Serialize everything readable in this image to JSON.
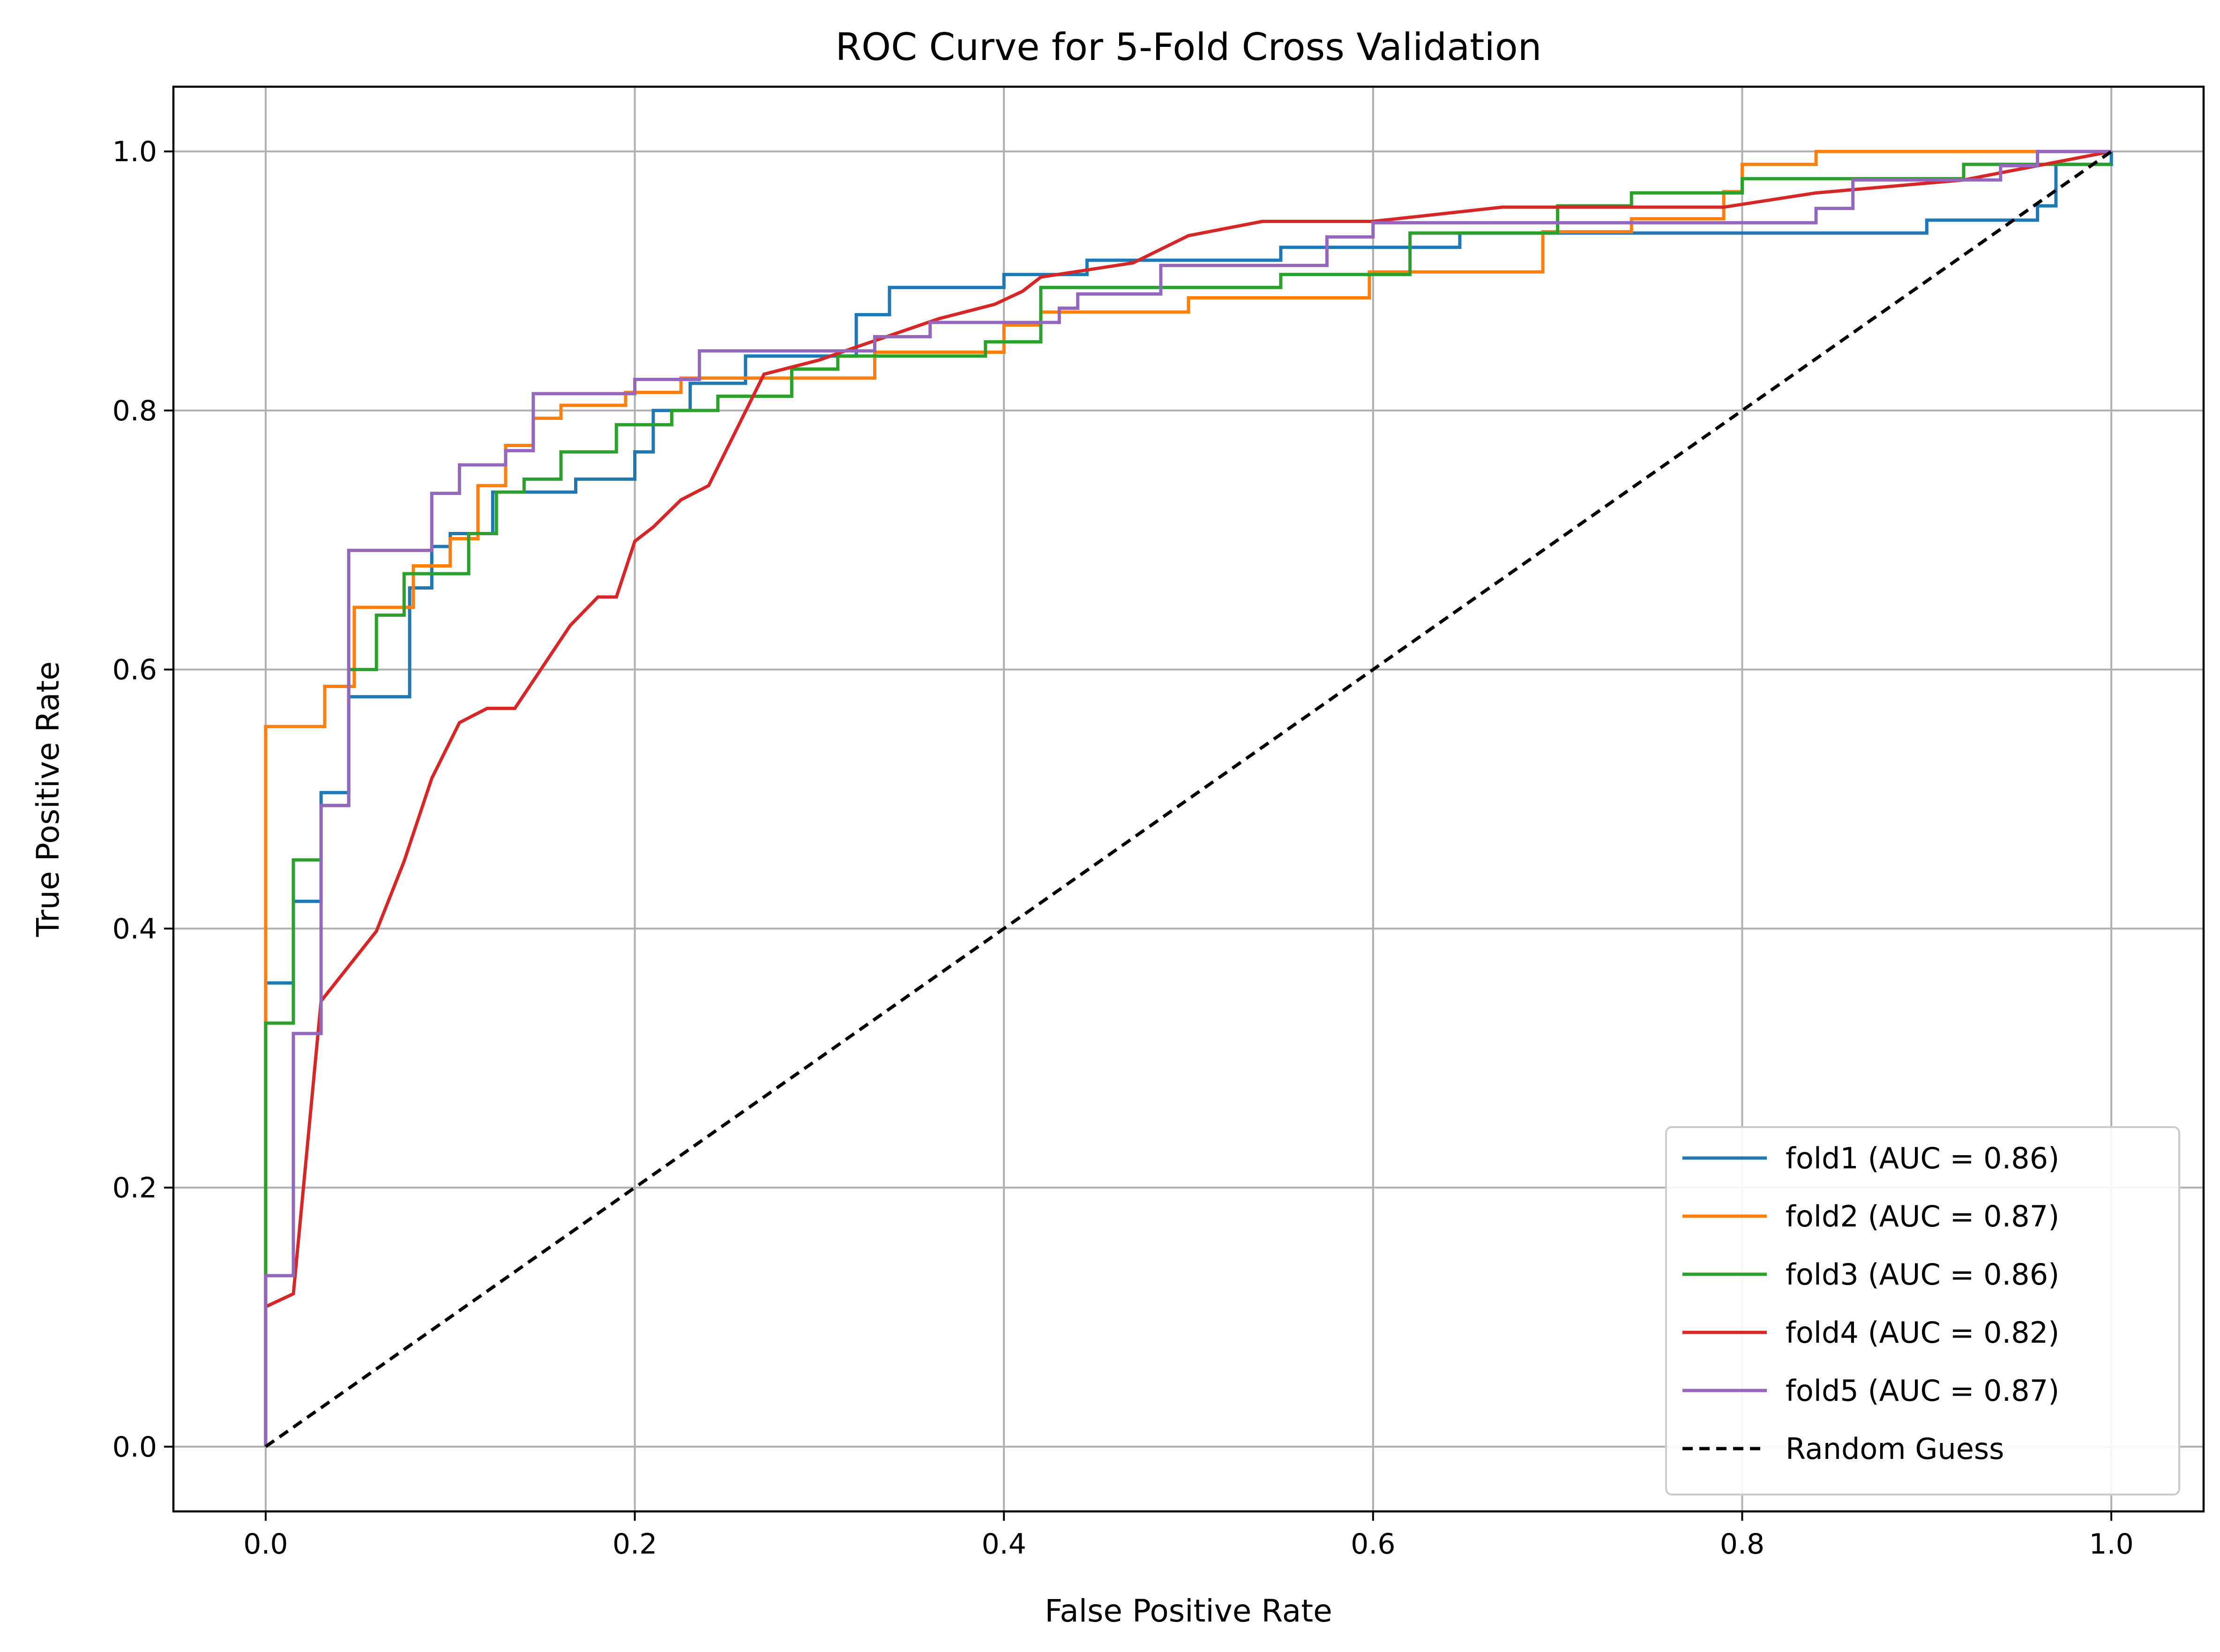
{
  "chart_data": {
    "type": "line",
    "title": "ROC Curve for 5-Fold Cross Validation",
    "xlabel": "False Positive Rate",
    "ylabel": "True Positive Rate",
    "xlim": [
      -0.05,
      1.05
    ],
    "ylim": [
      -0.05,
      1.05
    ],
    "xticks": [
      0.0,
      0.2,
      0.4,
      0.6,
      0.8,
      1.0
    ],
    "yticks": [
      0.0,
      0.2,
      0.4,
      0.6,
      0.8,
      1.0
    ],
    "xtick_labels": [
      "0.0",
      "0.2",
      "0.4",
      "0.6",
      "0.8",
      "1.0"
    ],
    "ytick_labels": [
      "0.0",
      "0.2",
      "0.4",
      "0.6",
      "0.8",
      "1.0"
    ],
    "grid": true,
    "legend_position": "bottom-right",
    "series": [
      {
        "name": "fold1 (AUC = 0.86)",
        "color": "#1f77b4",
        "step": true,
        "x": [
          0.0,
          0.0,
          0.015,
          0.015,
          0.03,
          0.03,
          0.045,
          0.045,
          0.078,
          0.078,
          0.09,
          0.09,
          0.1,
          0.1,
          0.123,
          0.123,
          0.168,
          0.168,
          0.2,
          0.2,
          0.21,
          0.21,
          0.23,
          0.23,
          0.26,
          0.26,
          0.32,
          0.32,
          0.338,
          0.338,
          0.4,
          0.4,
          0.445,
          0.445,
          0.55,
          0.55,
          0.647,
          0.647,
          0.9,
          0.9,
          0.96,
          0.96,
          0.97,
          0.97,
          1.0,
          1.0
        ],
        "y": [
          0.0,
          0.358,
          0.358,
          0.421,
          0.421,
          0.505,
          0.505,
          0.579,
          0.579,
          0.663,
          0.663,
          0.695,
          0.695,
          0.705,
          0.705,
          0.737,
          0.737,
          0.747,
          0.747,
          0.768,
          0.768,
          0.8,
          0.8,
          0.821,
          0.821,
          0.842,
          0.842,
          0.874,
          0.874,
          0.895,
          0.895,
          0.905,
          0.905,
          0.916,
          0.916,
          0.926,
          0.926,
          0.937,
          0.937,
          0.947,
          0.947,
          0.958,
          0.958,
          0.99,
          0.99,
          1.0
        ]
      },
      {
        "name": "fold2 (AUC = 0.87)",
        "color": "#ff7f0e",
        "step": true,
        "x": [
          0.0,
          0.0,
          0.032,
          0.032,
          0.048,
          0.048,
          0.08,
          0.08,
          0.1,
          0.1,
          0.115,
          0.115,
          0.13,
          0.13,
          0.145,
          0.145,
          0.16,
          0.16,
          0.195,
          0.195,
          0.225,
          0.225,
          0.33,
          0.33,
          0.4,
          0.4,
          0.42,
          0.42,
          0.5,
          0.5,
          0.598,
          0.598,
          0.692,
          0.692,
          0.74,
          0.74,
          0.79,
          0.79,
          0.8,
          0.8,
          0.84,
          0.84,
          1.0
        ],
        "y": [
          0.0,
          0.556,
          0.556,
          0.587,
          0.587,
          0.648,
          0.648,
          0.68,
          0.68,
          0.701,
          0.701,
          0.742,
          0.742,
          0.773,
          0.773,
          0.794,
          0.794,
          0.804,
          0.804,
          0.814,
          0.814,
          0.825,
          0.825,
          0.845,
          0.845,
          0.866,
          0.866,
          0.876,
          0.876,
          0.887,
          0.887,
          0.907,
          0.907,
          0.938,
          0.938,
          0.948,
          0.948,
          0.969,
          0.969,
          0.99,
          0.99,
          1.0,
          1.0
        ]
      },
      {
        "name": "fold3 (AUC = 0.86)",
        "color": "#2ca02c",
        "step": true,
        "x": [
          0.0,
          0.0,
          0.0,
          0.0,
          0.015,
          0.015,
          0.03,
          0.03,
          0.045,
          0.045,
          0.06,
          0.06,
          0.075,
          0.075,
          0.09,
          0.09,
          0.11,
          0.11,
          0.125,
          0.125,
          0.14,
          0.14,
          0.16,
          0.16,
          0.19,
          0.19,
          0.22,
          0.22,
          0.245,
          0.245,
          0.285,
          0.285,
          0.31,
          0.31,
          0.37,
          0.37,
          0.39,
          0.39,
          0.42,
          0.42,
          0.55,
          0.55,
          0.62,
          0.62,
          0.7,
          0.7,
          0.74,
          0.74,
          0.8,
          0.8,
          0.92,
          0.92,
          1.0
        ],
        "y": [
          0.0,
          0.133,
          0.133,
          0.327,
          0.327,
          0.453,
          0.453,
          0.495,
          0.495,
          0.6,
          0.6,
          0.642,
          0.642,
          0.674,
          0.674,
          0.674,
          0.674,
          0.705,
          0.705,
          0.737,
          0.737,
          0.747,
          0.747,
          0.768,
          0.768,
          0.789,
          0.789,
          0.8,
          0.8,
          0.811,
          0.811,
          0.832,
          0.832,
          0.842,
          0.842,
          0.842,
          0.842,
          0.853,
          0.853,
          0.895,
          0.895,
          0.905,
          0.905,
          0.937,
          0.937,
          0.958,
          0.958,
          0.968,
          0.968,
          0.979,
          0.979,
          0.99,
          0.99
        ]
      },
      {
        "name": "fold4 (AUC = 0.82)",
        "color": "#d62728",
        "step": true,
        "x": [
          0.0,
          0.0,
          0.015,
          0.015,
          0.03,
          0.03,
          0.06,
          0.06,
          0.075,
          0.075,
          0.09,
          0.09,
          0.105,
          0.105,
          0.12,
          0.12,
          0.135,
          0.135,
          0.165,
          0.165,
          0.18,
          0.18,
          0.19,
          0.19,
          0.2,
          0.2,
          0.21,
          0.21,
          0.225,
          0.225,
          0.24,
          0.24,
          0.255,
          0.255,
          0.27,
          0.27,
          0.3,
          0.3,
          0.32,
          0.32,
          0.365,
          0.365,
          0.395,
          0.395,
          0.41,
          0.41,
          0.42,
          0.42,
          0.47,
          0.47,
          0.5,
          0.5,
          0.54,
          0.54,
          0.6,
          0.6,
          0.67,
          0.67,
          0.79,
          0.79,
          0.84,
          0.84,
          0.92,
          0.92,
          1.0
        ],
        "y": [
          0.108,
          0.108,
          0.118,
          0.118,
          0.344,
          0.344,
          0.398,
          0.398,
          0.452,
          0.452,
          0.516,
          0.516,
          0.559,
          0.559,
          0.57,
          0.57,
          0.57,
          0.57,
          0.634,
          0.634,
          0.656,
          0.656,
          0.656,
          0.656,
          0.699,
          0.699,
          0.71,
          0.71,
          0.731,
          0.731,
          0.742,
          0.742,
          0.785,
          0.785,
          0.828,
          0.828,
          0.839,
          0.839,
          0.849,
          0.849,
          0.871,
          0.871,
          0.882,
          0.882,
          0.892,
          0.892,
          0.903,
          0.903,
          0.914,
          0.914,
          0.935,
          0.935,
          0.946,
          0.946,
          0.946,
          0.946,
          0.957,
          0.957,
          0.957,
          0.957,
          0.968,
          0.968,
          0.978,
          0.978,
          1.0
        ]
      },
      {
        "name": "fold5 (AUC = 0.87)",
        "color": "#9467bd",
        "step": true,
        "x": [
          0.0,
          0.0,
          0.015,
          0.015,
          0.03,
          0.03,
          0.045,
          0.045,
          0.09,
          0.09,
          0.105,
          0.105,
          0.13,
          0.13,
          0.145,
          0.145,
          0.2,
          0.2,
          0.235,
          0.235,
          0.33,
          0.33,
          0.36,
          0.36,
          0.43,
          0.43,
          0.44,
          0.44,
          0.485,
          0.485,
          0.575,
          0.575,
          0.6,
          0.6,
          0.76,
          0.76,
          0.84,
          0.84,
          0.86,
          0.86,
          0.94,
          0.94,
          0.96,
          0.96,
          1.0
        ],
        "y": [
          0.0,
          0.132,
          0.132,
          0.319,
          0.319,
          0.495,
          0.495,
          0.692,
          0.692,
          0.736,
          0.736,
          0.758,
          0.758,
          0.769,
          0.769,
          0.813,
          0.813,
          0.824,
          0.824,
          0.846,
          0.846,
          0.857,
          0.857,
          0.868,
          0.868,
          0.879,
          0.879,
          0.89,
          0.89,
          0.912,
          0.912,
          0.934,
          0.934,
          0.945,
          0.945,
          0.945,
          0.945,
          0.956,
          0.956,
          0.978,
          0.978,
          0.989,
          0.989,
          1.0,
          1.0
        ]
      },
      {
        "name": "Random Guess",
        "color": "#000000",
        "dashed": true,
        "x": [
          0.0,
          1.0
        ],
        "y": [
          0.0,
          1.0
        ]
      }
    ]
  }
}
